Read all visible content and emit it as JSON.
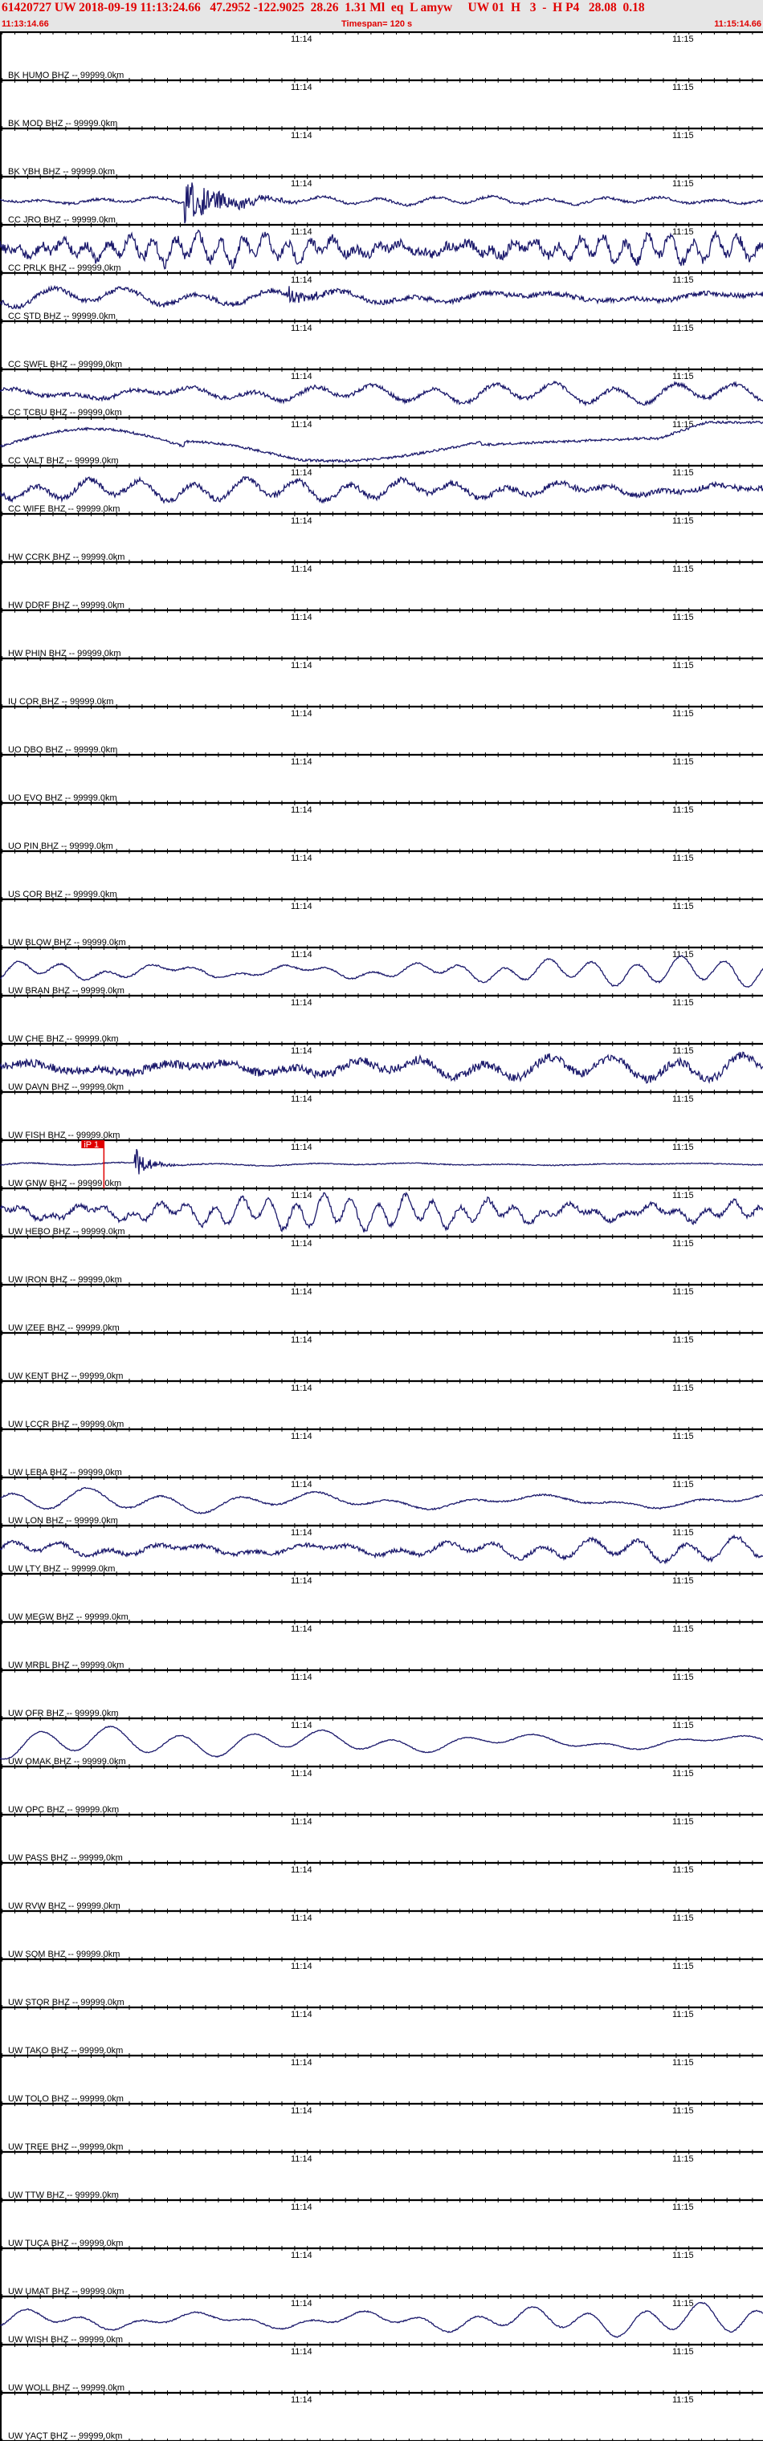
{
  "header": {
    "title": "61420727 UW 2018-09-19 11:13:24.66   47.2952 -122.9025  28.26  1.31 Ml  eq  L amyw     UW 01  H   3  -  H P4   28.08  0.18",
    "start_time": "11:13:14.66",
    "timespan": "Timespan= 120 s",
    "end_time": "11:15:14.66"
  },
  "time_axis": {
    "start_seconds_after_1113": 14.66,
    "span_seconds": 120,
    "tick_labels": [
      {
        "text": "11:14",
        "seconds_after_1113": 60
      },
      {
        "text": "11:15",
        "seconds_after_1113": 120
      }
    ]
  },
  "colors": {
    "trace": "#1c1a6c",
    "header_text": "#e00000",
    "header_bg": "#e6e6e6",
    "pick": "#e00000"
  },
  "pick": {
    "label": "iP 1",
    "channel_index": 23,
    "seconds_after_1113": 31.0
  },
  "channels": [
    {
      "label": "BK HUMO BHZ -- 99999.0km",
      "waveform": false
    },
    {
      "label": "BK MOD BHZ -- 99999.0km",
      "waveform": false
    },
    {
      "label": "BK YBH BHZ -- 99999.0km",
      "waveform": false
    },
    {
      "label": "CC JRO BHZ -- 99999.0km",
      "waveform": true
    },
    {
      "label": "CC PRLK BHZ -- 99999.0km",
      "waveform": true
    },
    {
      "label": "CC STD BHZ -- 99999.0km",
      "waveform": true
    },
    {
      "label": "CC SWFL BHZ -- 99999.0km",
      "waveform": false
    },
    {
      "label": "CC TCBU BHZ -- 99999.0km",
      "waveform": true
    },
    {
      "label": "CC VALT BHZ -- 99999.0km",
      "waveform": true
    },
    {
      "label": "CC WIFE BHZ -- 99999.0km",
      "waveform": true
    },
    {
      "label": "HW CCRK BHZ -- 99999.0km",
      "waveform": false
    },
    {
      "label": "HW DDRF BHZ -- 99999.0km",
      "waveform": false
    },
    {
      "label": "HW PHIN BHZ -- 99999.0km",
      "waveform": false
    },
    {
      "label": "IU COR BHZ -- 99999.0km",
      "waveform": false
    },
    {
      "label": "UO DBO BHZ -- 99999.0km",
      "waveform": false
    },
    {
      "label": "UO EVO BHZ -- 99999.0km",
      "waveform": false
    },
    {
      "label": "UO PIN BHZ -- 99999.0km",
      "waveform": false
    },
    {
      "label": "US COR BHZ -- 99999.0km",
      "waveform": false
    },
    {
      "label": "UW BLOW BHZ -- 99999.0km",
      "waveform": false
    },
    {
      "label": "UW BRAN BHZ -- 99999.0km",
      "waveform": true
    },
    {
      "label": "UW CHE BHZ -- 99999.0km",
      "waveform": false
    },
    {
      "label": "UW DAVN BHZ -- 99999.0km",
      "waveform": true
    },
    {
      "label": "UW FISH BHZ -- 99999.0km",
      "waveform": false
    },
    {
      "label": "UW GNW BHZ -- 99999.0km",
      "waveform": true
    },
    {
      "label": "UW HEBO BHZ -- 99999.0km",
      "waveform": true
    },
    {
      "label": "UW IRON BHZ -- 99999.0km",
      "waveform": false
    },
    {
      "label": "UW IZEE BHZ -- 99999.0km",
      "waveform": false
    },
    {
      "label": "UW KENT BHZ -- 99999.0km",
      "waveform": false
    },
    {
      "label": "UW LCCR BHZ -- 99999.0km",
      "waveform": false
    },
    {
      "label": "UW LEBA BHZ -- 99999.0km",
      "waveform": false
    },
    {
      "label": "UW LON BHZ -- 99999.0km",
      "waveform": true
    },
    {
      "label": "UW LTY BHZ -- 99999.0km",
      "waveform": true
    },
    {
      "label": "UW MEGW BHZ -- 99999.0km",
      "waveform": false
    },
    {
      "label": "UW MRBL BHZ -- 99999.0km",
      "waveform": false
    },
    {
      "label": "UW OFR BHZ -- 99999.0km",
      "waveform": false
    },
    {
      "label": "UW OMAK BHZ -- 99999.0km",
      "waveform": true
    },
    {
      "label": "UW OPC BHZ -- 99999.0km",
      "waveform": false
    },
    {
      "label": "UW PASS BHZ -- 99999.0km",
      "waveform": false
    },
    {
      "label": "UW RVW BHZ -- 99999.0km",
      "waveform": false
    },
    {
      "label": "UW SQM BHZ -- 99999.0km",
      "waveform": false
    },
    {
      "label": "UW STOR BHZ -- 99999.0km",
      "waveform": false
    },
    {
      "label": "UW TAKO BHZ -- 99999.0km",
      "waveform": false
    },
    {
      "label": "UW TOLO BHZ -- 99999.0km",
      "waveform": false
    },
    {
      "label": "UW TREE BHZ -- 99999.0km",
      "waveform": false
    },
    {
      "label": "UW TTW BHZ -- 99999.0km",
      "waveform": false
    },
    {
      "label": "UW TUCA BHZ -- 99999.0km",
      "waveform": false
    },
    {
      "label": "UW UMAT BHZ -- 99999.0km",
      "waveform": false
    },
    {
      "label": "UW WISH BHZ -- 99999.0km",
      "waveform": true
    },
    {
      "label": "UW WOLL BHZ -- 99999.0km",
      "waveform": false
    },
    {
      "label": "UW YACT BHZ -- 99999.0km",
      "waveform": false
    }
  ]
}
